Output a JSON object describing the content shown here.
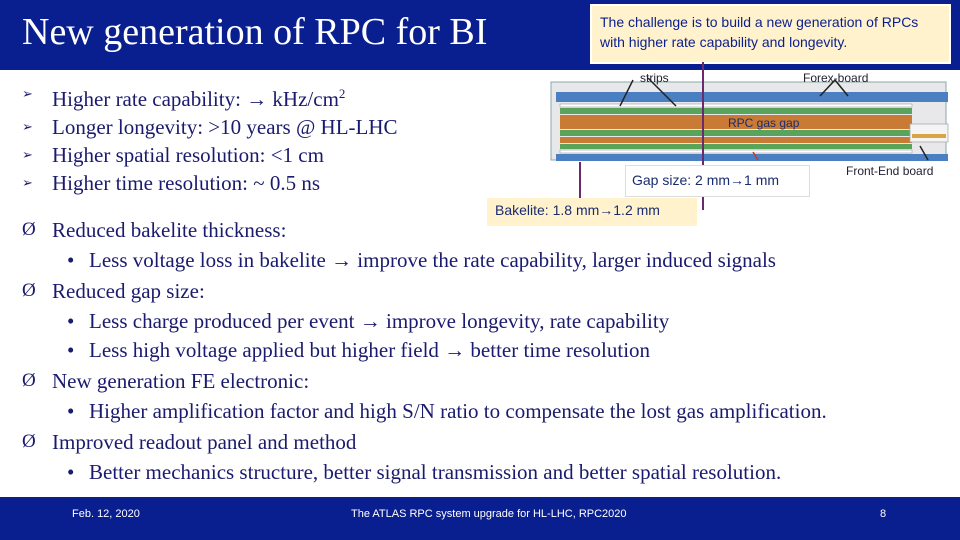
{
  "title": "New generation of RPC for BI",
  "callout": "The challenge is to build a new generation of RPCs with higher rate capability and longevity.",
  "top_items": [
    {
      "text": "Higher rate capability: ",
      "arrow": "→",
      "tail": " kHz/cm",
      "sup": "2"
    },
    {
      "text": "Longer longevity: >10 years @ HL-LHC"
    },
    {
      "text": "Higher spatial resolution: <1 cm"
    },
    {
      "text": "Higher time resolution: ~ 0.5 ns"
    }
  ],
  "main_items": [
    {
      "label": "Reduced bakelite thickness:",
      "subs": [
        {
          "a": "Less voltage loss in bakelite ",
          "b": " improve the rate capability, larger induced signals"
        }
      ]
    },
    {
      "label": "Reduced gap size:",
      "subs": [
        {
          "a": "Less charge produced per event ",
          "b": " improve longevity, rate capability"
        },
        {
          "a": "Less high voltage applied but higher field ",
          "b": " better time resolution"
        }
      ]
    },
    {
      "label": "New generation FE electronic:",
      "subs": [
        {
          "a": "Higher amplification factor and high S/N ratio to compensate the lost gas amplification."
        }
      ]
    },
    {
      "label": "Improved readout panel and method",
      "subs": [
        {
          "a": "Better mechanics structure, better signal transmission and better spatial resolution."
        }
      ]
    }
  ],
  "diagram": {
    "strips": "strips",
    "forex": "Forex-board",
    "gas_gap": "RPC gas gap",
    "fe_board": "Front-End board",
    "gap_size_a": "Gap size: 2 mm",
    "gap_size_b": "1 mm",
    "bakelite_a": "Bakelite: 1.8 mm",
    "bakelite_b": "1.2 mm",
    "arrow": "→"
  },
  "footer": {
    "date": "Feb. 12, 2020",
    "center": "The ATLAS RPC system upgrade for HL-LHC, RPC2020",
    "page": "8"
  },
  "colors": {
    "header_bg": "#0a1f8f",
    "callout_bg": "#fff2cc",
    "text": "#1a1a6e"
  }
}
